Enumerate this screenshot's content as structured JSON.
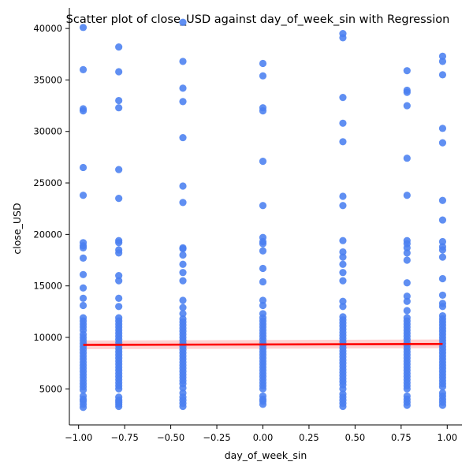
{
  "chart_data": {
    "type": "scatter",
    "title": "Scatter plot of close_USD against day_of_week_sin with Regression",
    "xlabel": "day_of_week_sin",
    "ylabel": "close_USD",
    "xlim": [
      -1.05,
      1.08
    ],
    "ylim": [
      1500,
      42000
    ],
    "xticks": [
      -1.0,
      -0.75,
      -0.5,
      -0.25,
      0.0,
      0.25,
      0.5,
      0.75,
      1.0
    ],
    "xtick_labels": [
      "−1.00",
      "−0.75",
      "−0.50",
      "−0.25",
      "0.00",
      "0.25",
      "0.50",
      "0.75",
      "1.00"
    ],
    "yticks": [
      5000,
      10000,
      15000,
      20000,
      25000,
      30000,
      35000,
      40000
    ],
    "ytick_labels": [
      "5000",
      "10000",
      "15000",
      "20000",
      "25000",
      "30000",
      "35000",
      "40000"
    ],
    "grid": false,
    "legend": "none",
    "colors": {
      "points": "#4a80f0",
      "regression_line": "#ff0000",
      "confidence_band": "#ff9999"
    },
    "series": [
      {
        "x": -0.975,
        "values": [
          40100,
          36000,
          32200,
          32000,
          26500,
          23800,
          19200,
          18900,
          18700,
          17700,
          16100,
          14800,
          13800,
          13100,
          11900,
          11600,
          11300,
          11000,
          10700,
          10300,
          10000,
          9700,
          9400,
          9100,
          8800,
          8500,
          8200,
          7900,
          7600,
          7300,
          7000,
          6700,
          6400,
          6100,
          5800,
          5500,
          5200,
          4900,
          4300,
          4000,
          3800,
          3500,
          3200
        ]
      },
      {
        "x": -0.782,
        "values": [
          38200,
          35800,
          33000,
          32300,
          26300,
          23500,
          19400,
          19200,
          18500,
          18200,
          16000,
          15500,
          13800,
          13000,
          11900,
          11600,
          11300,
          11000,
          10700,
          10400,
          10100,
          9800,
          9500,
          9200,
          8900,
          8600,
          8300,
          8000,
          7700,
          7400,
          7100,
          6800,
          6500,
          6200,
          5900,
          5600,
          5300,
          5000,
          4200,
          3900,
          3700,
          3500,
          3300
        ]
      },
      {
        "x": -0.434,
        "values": [
          40600,
          36800,
          34200,
          32900,
          29400,
          24700,
          23100,
          18700,
          18600,
          18000,
          17100,
          16300,
          15500,
          13600,
          12900,
          12300,
          11800,
          11500,
          11200,
          10900,
          10600,
          10300,
          10000,
          9700,
          9400,
          9100,
          8800,
          8500,
          8200,
          7900,
          7600,
          7300,
          7000,
          6700,
          6400,
          6100,
          5800,
          5500,
          5100,
          4600,
          4200,
          3900,
          3600,
          3300
        ]
      },
      {
        "x": 0.0,
        "values": [
          36600,
          35400,
          32300,
          32000,
          27100,
          22800,
          19700,
          19300,
          19100,
          18400,
          16700,
          15400,
          13600,
          13100,
          12300,
          11900,
          11600,
          11300,
          11000,
          10700,
          10400,
          10100,
          9800,
          9500,
          9200,
          8900,
          8600,
          8300,
          8000,
          7700,
          7400,
          7100,
          6800,
          6500,
          6200,
          5900,
          5600,
          5300,
          5000,
          4300,
          4000,
          3800,
          3500
        ]
      },
      {
        "x": 0.434,
        "values": [
          39500,
          39100,
          33300,
          30800,
          29000,
          23700,
          22800,
          19400,
          18300,
          17800,
          17100,
          16300,
          15500,
          13500,
          13000,
          12000,
          11700,
          11400,
          11100,
          10800,
          10500,
          10200,
          9900,
          9600,
          9300,
          9000,
          8700,
          8400,
          8100,
          7800,
          7500,
          7200,
          6900,
          6600,
          6300,
          6000,
          5700,
          5400,
          5000,
          4500,
          4200,
          3900,
          3600,
          3300
        ]
      },
      {
        "x": 0.782,
        "values": [
          35900,
          34000,
          33800,
          32500,
          27400,
          23800,
          19400,
          19100,
          18700,
          18200,
          17500,
          15300,
          14000,
          13500,
          12600,
          11900,
          11600,
          11300,
          11000,
          10700,
          10400,
          10100,
          9800,
          9500,
          9200,
          8900,
          8600,
          8300,
          8000,
          7700,
          7400,
          7100,
          6800,
          6500,
          6200,
          5900,
          5600,
          5300,
          5000,
          4300,
          4000,
          3700,
          3400
        ]
      },
      {
        "x": 0.975,
        "values": [
          37300,
          36800,
          35500,
          30300,
          28900,
          23300,
          21400,
          19300,
          18800,
          18500,
          17800,
          15700,
          14100,
          13300,
          13000,
          12100,
          11800,
          11500,
          11200,
          10900,
          10600,
          10300,
          10000,
          9700,
          9400,
          9100,
          8800,
          8500,
          8200,
          7900,
          7600,
          7300,
          7000,
          6700,
          6400,
          6100,
          5800,
          5500,
          5200,
          4600,
          4300,
          4000,
          3700,
          3400
        ]
      }
    ],
    "regression": {
      "x": [
        -0.975,
        0.975
      ],
      "y": [
        9270,
        9360
      ],
      "ci_lower": [
        8850,
        8950
      ],
      "ci_upper": [
        9700,
        9800
      ]
    }
  }
}
